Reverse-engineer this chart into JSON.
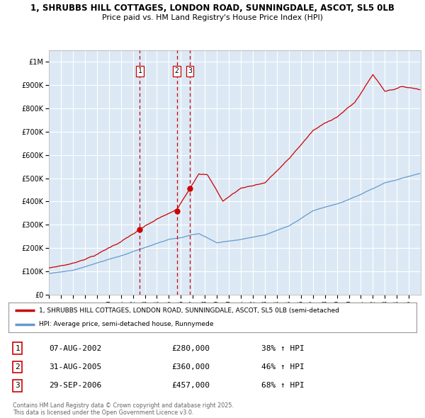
{
  "title_line1": "1, SHRUBBS HILL COTTAGES, LONDON ROAD, SUNNINGDALE, ASCOT, SL5 0LB",
  "title_line2": "Price paid vs. HM Land Registry's House Price Index (HPI)",
  "background_color": "#dce9f5",
  "plot_background": "#dce9f5",
  "y_ticks": [
    0,
    100000,
    200000,
    300000,
    400000,
    500000,
    600000,
    700000,
    800000,
    900000,
    1000000
  ],
  "ylim": [
    0,
    1050000
  ],
  "xlim_start": 1995.0,
  "xlim_end": 2025.99,
  "purchase_dates": [
    2002.58,
    2005.66,
    2006.74
  ],
  "purchase_prices": [
    280000,
    360000,
    457000
  ],
  "purchase_labels": [
    "1",
    "2",
    "3"
  ],
  "legend_line1": "1, SHRUBBS HILL COTTAGES, LONDON ROAD, SUNNINGDALE, ASCOT, SL5 0LB (semi-detached",
  "legend_line2": "HPI: Average price, semi-detached house, Runnymede",
  "table_data": [
    [
      "1",
      "07-AUG-2002",
      "£280,000",
      "38% ↑ HPI"
    ],
    [
      "2",
      "31-AUG-2005",
      "£360,000",
      "46% ↑ HPI"
    ],
    [
      "3",
      "29-SEP-2006",
      "£457,000",
      "68% ↑ HPI"
    ]
  ],
  "footer_text": "Contains HM Land Registry data © Crown copyright and database right 2025.\nThis data is licensed under the Open Government Licence v3.0.",
  "red_line_color": "#cc0000",
  "blue_line_color": "#6699cc"
}
